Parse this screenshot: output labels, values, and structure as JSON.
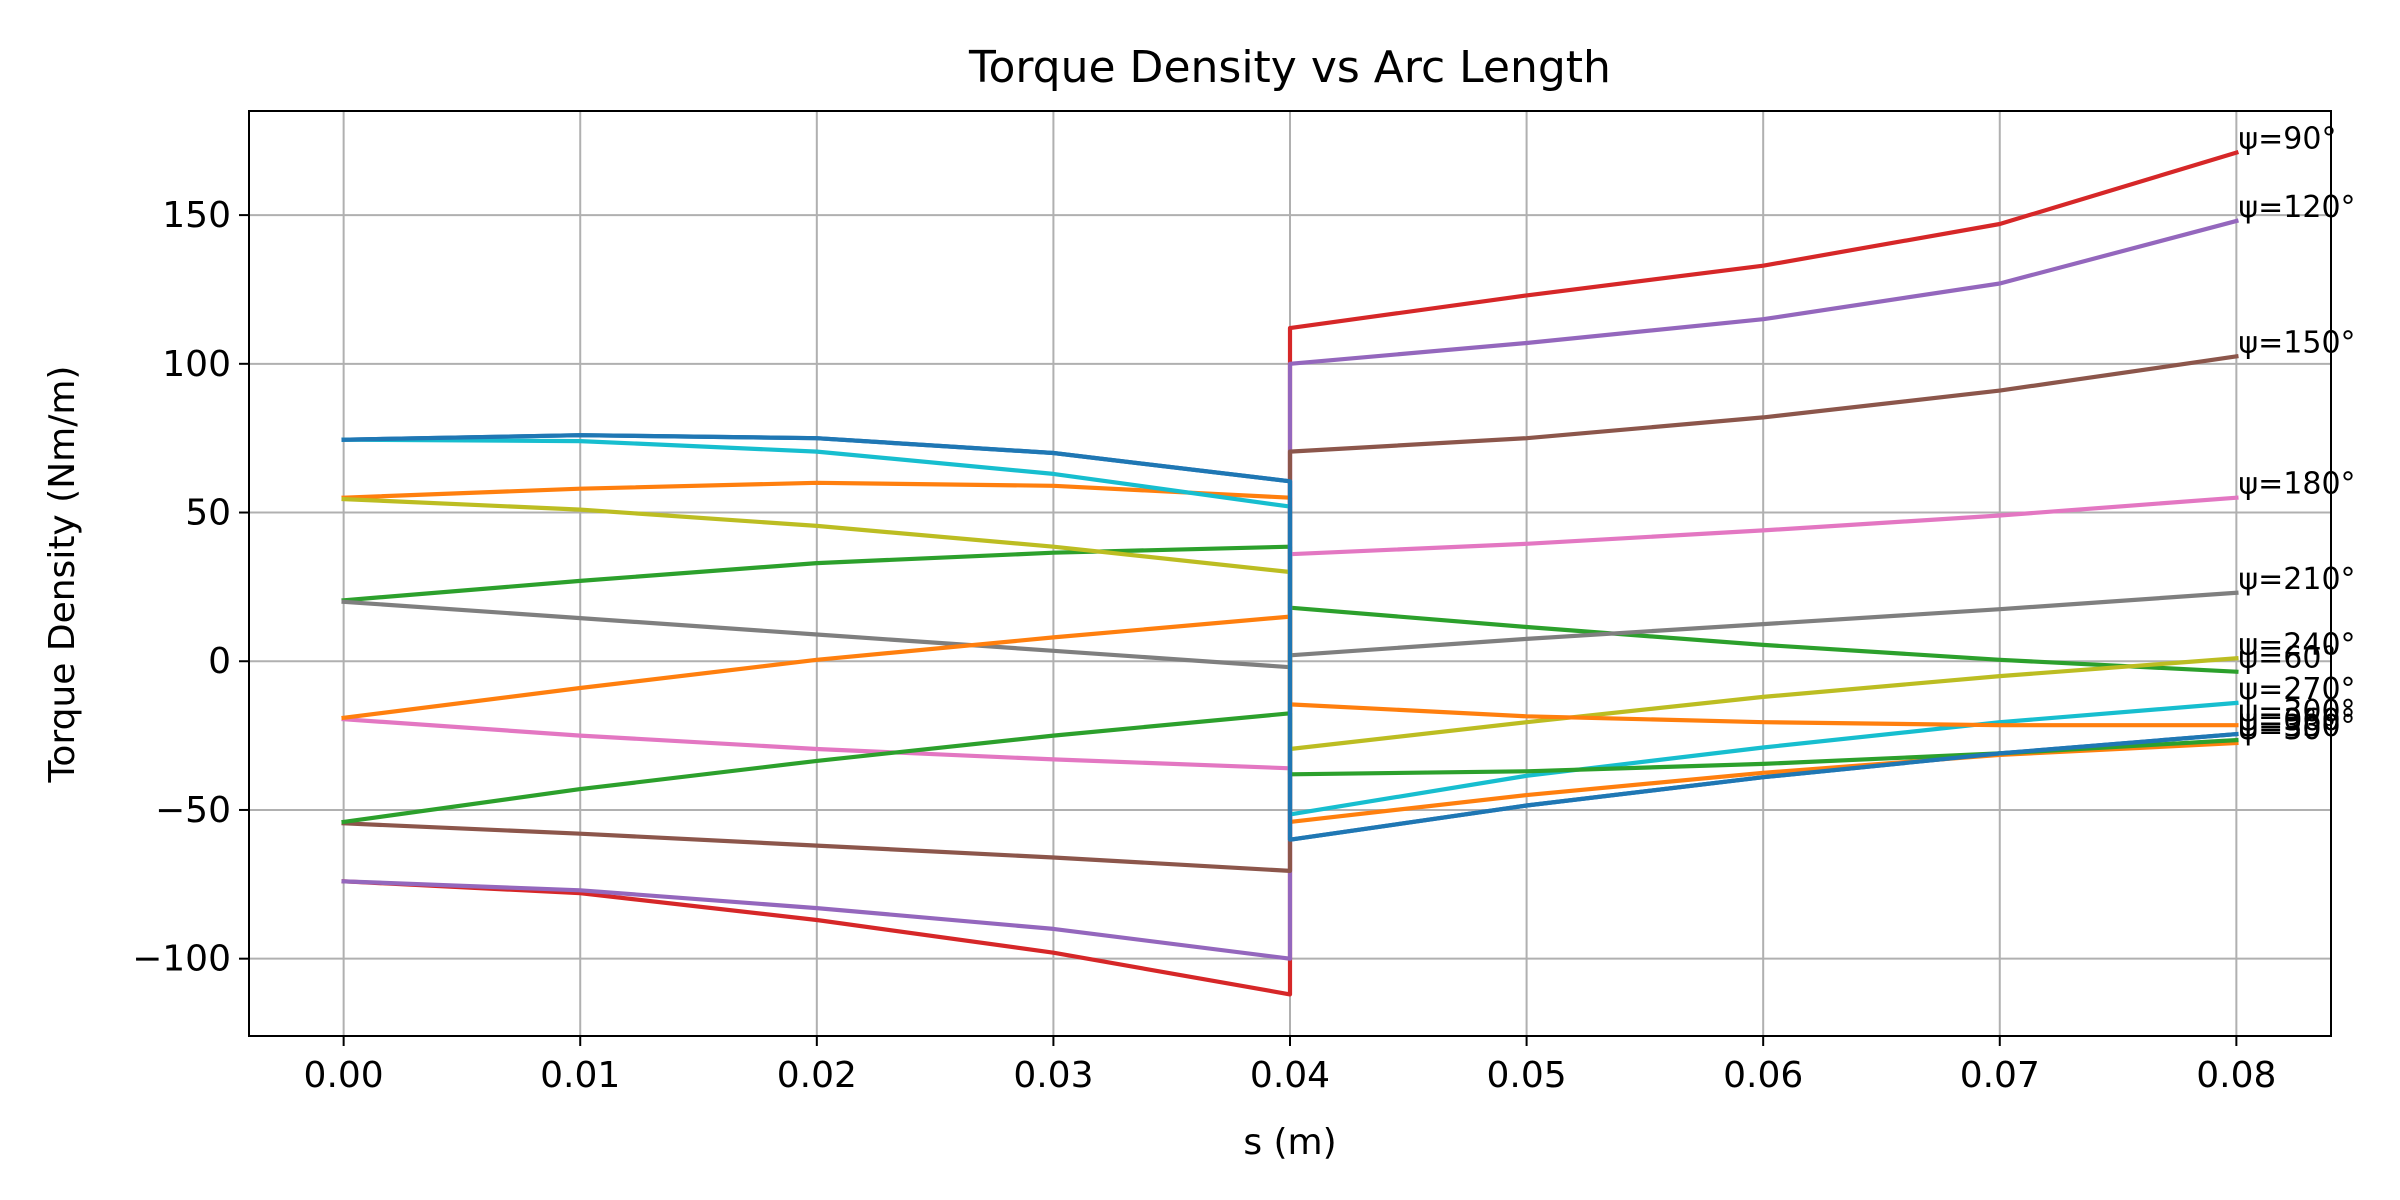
{
  "chart_data": {
    "type": "line",
    "title": "Torque Density vs Arc Length",
    "xlabel": "s (m)",
    "ylabel": "Torque Density (Nm/m)",
    "xlim": [
      -0.004,
      0.084
    ],
    "ylim": [
      -126,
      185
    ],
    "xticks": [
      0.0,
      0.01,
      0.02,
      0.03,
      0.04,
      0.05,
      0.06,
      0.07,
      0.08
    ],
    "xtick_labels": [
      "0.00",
      "0.01",
      "0.02",
      "0.03",
      "0.04",
      "0.05",
      "0.06",
      "0.07",
      "0.08"
    ],
    "yticks": [
      -100,
      -50,
      0,
      50,
      100,
      150
    ],
    "ytick_labels": [
      "−100",
      "−50",
      "0",
      "50",
      "100",
      "150"
    ],
    "grid": true,
    "legend": "none",
    "series": [
      {
        "name": "ψ=0°",
        "color": "#1f77b4",
        "x": [
          0,
          0.01,
          0.02,
          0.03,
          0.04,
          0.04,
          0.05,
          0.06,
          0.07,
          0.08
        ],
        "y": [
          74.5,
          76,
          75,
          70,
          60.5,
          -60,
          -48.5,
          -39,
          -31,
          -24.5
        ]
      },
      {
        "name": "ψ=30°",
        "color": "#ff7f0e",
        "x": [
          0,
          0.01,
          0.02,
          0.03,
          0.04,
          0.04,
          0.05,
          0.06,
          0.07,
          0.08
        ],
        "y": [
          55,
          58,
          60,
          59,
          55,
          -54,
          -45,
          -37.5,
          -31.5,
          -27.5
        ]
      },
      {
        "name": "ψ=60°",
        "color": "#2ca02c",
        "x": [
          0,
          0.01,
          0.02,
          0.03,
          0.04,
          0.04,
          0.05,
          0.06,
          0.07,
          0.08
        ],
        "y": [
          20.5,
          27,
          33,
          36.5,
          38.5,
          18,
          11.5,
          5.5,
          0.5,
          -3.5
        ]
      },
      {
        "name": "ψ=90°",
        "color": "#d62728",
        "x": [
          0,
          0.01,
          0.02,
          0.03,
          0.04,
          0.04,
          0.05,
          0.06,
          0.07,
          0.08
        ],
        "y": [
          -74,
          -78,
          -87,
          -98,
          -112,
          112,
          123,
          133,
          147,
          171
        ]
      },
      {
        "name": "ψ=120°",
        "color": "#9467bd",
        "x": [
          0,
          0.01,
          0.02,
          0.03,
          0.04,
          0.04,
          0.05,
          0.06,
          0.07,
          0.08
        ],
        "y": [
          -74,
          -77,
          -83,
          -90,
          -100,
          100,
          107,
          115,
          127,
          148
        ]
      },
      {
        "name": "ψ=150°",
        "color": "#8c564b",
        "x": [
          0,
          0.01,
          0.02,
          0.03,
          0.04,
          0.04,
          0.05,
          0.06,
          0.07,
          0.08
        ],
        "y": [
          -54.5,
          -58,
          -62,
          -66,
          -70.5,
          70.5,
          75,
          82,
          91,
          102.5
        ]
      },
      {
        "name": "ψ=180°",
        "color": "#e377c2",
        "x": [
          0,
          0.01,
          0.02,
          0.03,
          0.04,
          0.04,
          0.05,
          0.06,
          0.07,
          0.08
        ],
        "y": [
          -19.5,
          -25,
          -29.5,
          -33,
          -36,
          36,
          39.5,
          44,
          49,
          55
        ]
      },
      {
        "name": "ψ=210°",
        "color": "#7f7f7f",
        "x": [
          0,
          0.01,
          0.02,
          0.03,
          0.04,
          0.04,
          0.05,
          0.06,
          0.07,
          0.08
        ],
        "y": [
          20,
          14.5,
          9,
          3.5,
          -2,
          2,
          7.5,
          12.5,
          17.5,
          23
        ]
      },
      {
        "name": "ψ=240°",
        "color": "#bcbd22",
        "x": [
          0,
          0.01,
          0.02,
          0.03,
          0.04,
          0.04,
          0.05,
          0.06,
          0.07,
          0.08
        ],
        "y": [
          54.5,
          51,
          45.5,
          38.5,
          30,
          -29.5,
          -20.5,
          -12,
          -5,
          1
        ]
      },
      {
        "name": "ψ=270°",
        "color": "#17becf",
        "x": [
          0,
          0.01,
          0.02,
          0.03,
          0.04,
          0.04,
          0.05,
          0.06,
          0.07,
          0.08
        ],
        "y": [
          74.5,
          74,
          70.5,
          63,
          52,
          -51.5,
          -38.5,
          -29,
          -20.5,
          -14
        ]
      },
      {
        "name": "ψ=300°",
        "color": "#ff7f0e",
        "x": [
          0,
          0.01,
          0.02,
          0.03,
          0.04,
          0.04,
          0.05,
          0.06,
          0.07,
          0.08
        ],
        "y": [
          -19,
          -9,
          0.5,
          8,
          15,
          -14.5,
          -18.5,
          -20.5,
          -21.5,
          -21.5
        ]
      },
      {
        "name": "ψ=330°",
        "color": "#2ca02c",
        "x": [
          0,
          0.01,
          0.02,
          0.03,
          0.04,
          0.04,
          0.05,
          0.06,
          0.07,
          0.08
        ],
        "y": [
          -54,
          -43,
          -33.5,
          -25,
          -17.5,
          -38,
          -37,
          -34.5,
          -31,
          -26.5
        ]
      },
      {
        "name": "ψ=360°",
        "color": "#1f77b4",
        "x": [
          0,
          0.01,
          0.02,
          0.03,
          0.04,
          0.04,
          0.05,
          0.06,
          0.07,
          0.08
        ],
        "y": [
          74.5,
          76,
          75,
          70,
          60.5,
          -60,
          -48.5,
          -39,
          -31,
          -24.5
        ]
      }
    ],
    "end_labels": [
      {
        "text": "ψ=90°",
        "y": 171
      },
      {
        "text": "ψ=120°",
        "y": 148
      },
      {
        "text": "ψ=150°",
        "y": 102.5
      },
      {
        "text": "ψ=180°",
        "y": 55
      },
      {
        "text": "ψ=210°",
        "y": 23
      },
      {
        "text": "ψ=240°",
        "y": 1
      },
      {
        "text": "ψ=60°",
        "y": -3.5
      },
      {
        "text": "ψ=270°",
        "y": -14
      },
      {
        "text": "ψ=300°",
        "y": -21.5
      },
      {
        "text": "ψ=330°",
        "y": -26.5
      },
      {
        "text": "ψ=0°",
        "y": -24.5
      },
      {
        "text": "ψ=30°",
        "y": -27.5
      },
      {
        "text": "ψ=360°",
        "y": -24.5
      }
    ]
  }
}
